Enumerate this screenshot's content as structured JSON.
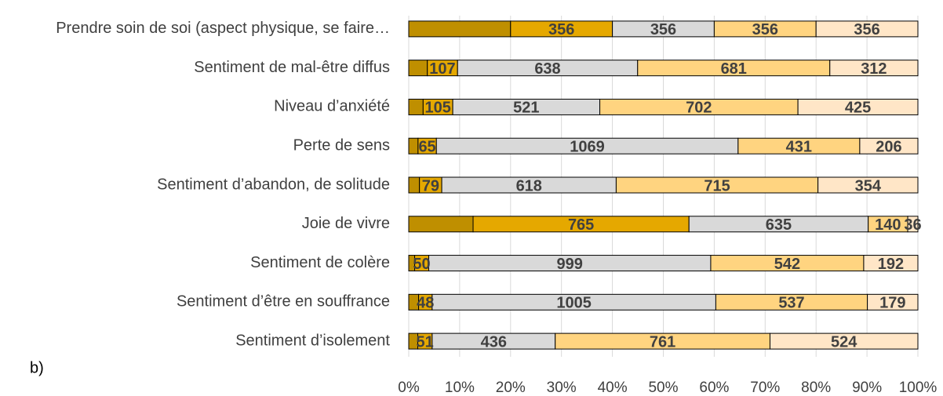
{
  "chart_data": {
    "type": "stacked_bar_100",
    "note_label": "b)",
    "categories": [
      "Prendre soin de soi (aspect physique, se faire…",
      "Sentiment de mal-être diffus",
      "Niveau d’anxiété",
      "Perte de sens",
      "Sentiment d’abandon, de solitude",
      "Joie de vivre",
      "Sentiment de colère",
      "Sentiment d’être en souffrance",
      "Sentiment d’isolement"
    ],
    "series": [
      {
        "color": "#bf8f00",
        "show_labels": false,
        "values": [
          356,
          66,
          51,
          33,
          38,
          228,
          21,
          35,
          32
        ]
      },
      {
        "color": "#e5a800",
        "show_labels": true,
        "values": [
          356,
          107,
          105,
          65,
          79,
          765,
          50,
          48,
          51
        ]
      },
      {
        "color": "#d9d9d9",
        "show_labels": true,
        "values": [
          356,
          638,
          521,
          1069,
          618,
          635,
          999,
          1005,
          436
        ]
      },
      {
        "color": "#ffd480",
        "show_labels": true,
        "values": [
          356,
          681,
          702,
          431,
          715,
          140,
          542,
          537,
          761
        ]
      },
      {
        "color": "#ffe6c7",
        "show_labels": true,
        "values": [
          356,
          312,
          425,
          206,
          354,
          36,
          192,
          179,
          524
        ]
      }
    ],
    "xlim": [
      0,
      100
    ],
    "xticks": [
      {
        "value": 0,
        "label": "0%"
      },
      {
        "value": 10,
        "label": "10%"
      },
      {
        "value": 20,
        "label": "20%"
      },
      {
        "value": 30,
        "label": "30%"
      },
      {
        "value": 40,
        "label": "40%"
      },
      {
        "value": 50,
        "label": "50%"
      },
      {
        "value": 60,
        "label": "60%"
      },
      {
        "value": 70,
        "label": "70%"
      },
      {
        "value": 80,
        "label": "80%"
      },
      {
        "value": 90,
        "label": "90%"
      },
      {
        "value": 100,
        "label": "100%"
      }
    ],
    "grid": true
  }
}
